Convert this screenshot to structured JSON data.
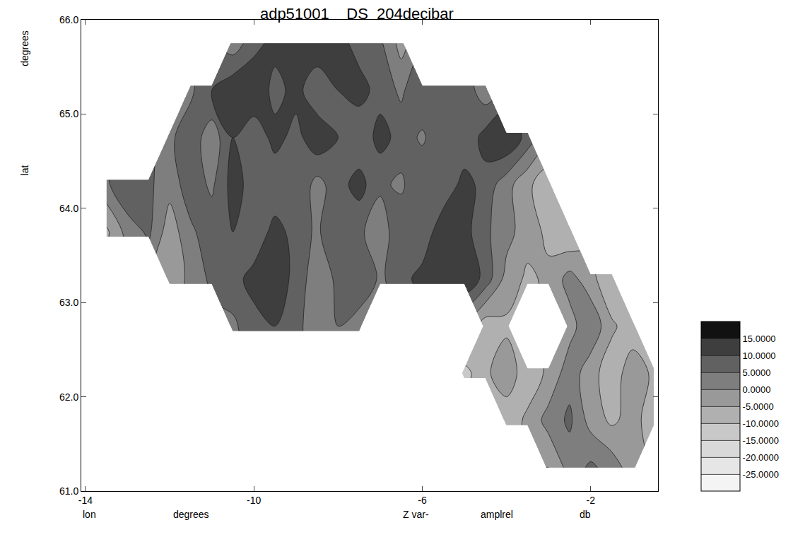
{
  "chart_data": {
    "type": "contour",
    "title": "adp51001    DS  204decibar",
    "xlabel": "lon",
    "ylabel": "lat",
    "annotations": [
      "degrees",
      "degrees",
      "Z var-",
      "amplrel",
      "db"
    ],
    "xlim": [
      -14.1,
      -0.4
    ],
    "xticks": [
      -14,
      -10,
      -6,
      -2
    ],
    "ylim": [
      61,
      66
    ],
    "yticks": [
      {
        "value": 61,
        "label": "61.0"
      },
      {
        "value": 62,
        "label": "62.0"
      },
      {
        "value": 63,
        "label": "63.0"
      },
      {
        "value": 64,
        "label": "64.0"
      },
      {
        "value": 65,
        "label": "65.0"
      },
      {
        "value": 66,
        "label": "66.0"
      }
    ],
    "x": [
      -13.5,
      -13,
      -12.5,
      -12,
      -11.5,
      -11,
      -10.5,
      -10,
      -9.5,
      -9,
      -8.5,
      -8,
      -7.5,
      -7,
      -6.5,
      -6,
      -5.5,
      -5,
      -4.5,
      -4,
      -3.5,
      -3,
      -2.5,
      -2,
      -1.5,
      -1,
      -0.5
    ],
    "y": [
      61.25,
      61.75,
      62.25,
      62.75,
      63.25,
      63.75,
      64.25,
      64.75,
      65.25,
      65.75
    ],
    "z": [
      [
        null,
        null,
        null,
        null,
        null,
        null,
        null,
        null,
        null,
        null,
        null,
        null,
        null,
        null,
        null,
        null,
        null,
        null,
        null,
        null,
        null,
        -5,
        2,
        6,
        3,
        -3,
        null
      ],
      [
        null,
        null,
        null,
        null,
        null,
        null,
        null,
        null,
        null,
        null,
        null,
        null,
        null,
        null,
        null,
        null,
        null,
        null,
        null,
        -8,
        -4,
        2,
        6,
        -2,
        -6,
        -3,
        -8
      ],
      [
        null,
        null,
        null,
        null,
        null,
        null,
        null,
        null,
        null,
        null,
        null,
        null,
        null,
        null,
        null,
        null,
        null,
        -12,
        -6,
        -2,
        -8,
        -4,
        3,
        -3,
        -8,
        -2,
        -6
      ],
      [
        null,
        null,
        null,
        null,
        null,
        null,
        4,
        8,
        10,
        6,
        3,
        5,
        2,
        null,
        null,
        null,
        null,
        null,
        -8,
        -6,
        null,
        null,
        -2,
        4,
        -4,
        -8,
        null
      ],
      [
        null,
        null,
        null,
        -5,
        2,
        6,
        8,
        12,
        14,
        8,
        2,
        6,
        10,
        4,
        8,
        12,
        14,
        15,
        8,
        -2,
        -6,
        -4,
        2,
        -3,
        -10,
        null,
        null
      ],
      [
        -6,
        2,
        6,
        -3,
        4,
        8,
        10,
        6,
        12,
        8,
        4,
        10,
        6,
        2,
        9,
        6,
        14,
        12,
        6,
        2,
        -3,
        -6,
        -10,
        null,
        null,
        null,
        null
      ],
      [
        4,
        10,
        6,
        2,
        8,
        4,
        12,
        8,
        6,
        10,
        3,
        8,
        12,
        6,
        4,
        10,
        6,
        12,
        8,
        2,
        -4,
        -8,
        null,
        null,
        null,
        null,
        null
      ],
      [
        null,
        null,
        null,
        4,
        8,
        2,
        10,
        6,
        12,
        8,
        14,
        10,
        6,
        12,
        8,
        4,
        10,
        6,
        12,
        15,
        8,
        null,
        null,
        null,
        null,
        null,
        null
      ],
      [
        null,
        null,
        null,
        null,
        4,
        10,
        14,
        15,
        8,
        12,
        6,
        10,
        12,
        8,
        4,
        10,
        6,
        8,
        2,
        null,
        null,
        null,
        null,
        null,
        null,
        null,
        null
      ],
      [
        null,
        null,
        null,
        null,
        null,
        null,
        2,
        8,
        12,
        10,
        14,
        12,
        8,
        6,
        -2,
        null,
        null,
        null,
        null,
        null,
        null,
        null,
        null,
        null,
        null,
        null,
        null
      ]
    ],
    "colorbar_range": [
      -30,
      20
    ],
    "colorbar_ticks": [
      {
        "value": 15,
        "label": "15.0000"
      },
      {
        "value": 10,
        "label": "10.0000"
      },
      {
        "value": 5,
        "label": "5.0000"
      },
      {
        "value": 0,
        "label": "0.0000"
      },
      {
        "value": -5,
        "label": "-5.0000"
      },
      {
        "value": -10,
        "label": "-10.0000"
      },
      {
        "value": -15,
        "label": "-15.0000"
      },
      {
        "value": -20,
        "label": "-20.0000"
      },
      {
        "value": -25,
        "label": "-25.0000"
      }
    ]
  }
}
